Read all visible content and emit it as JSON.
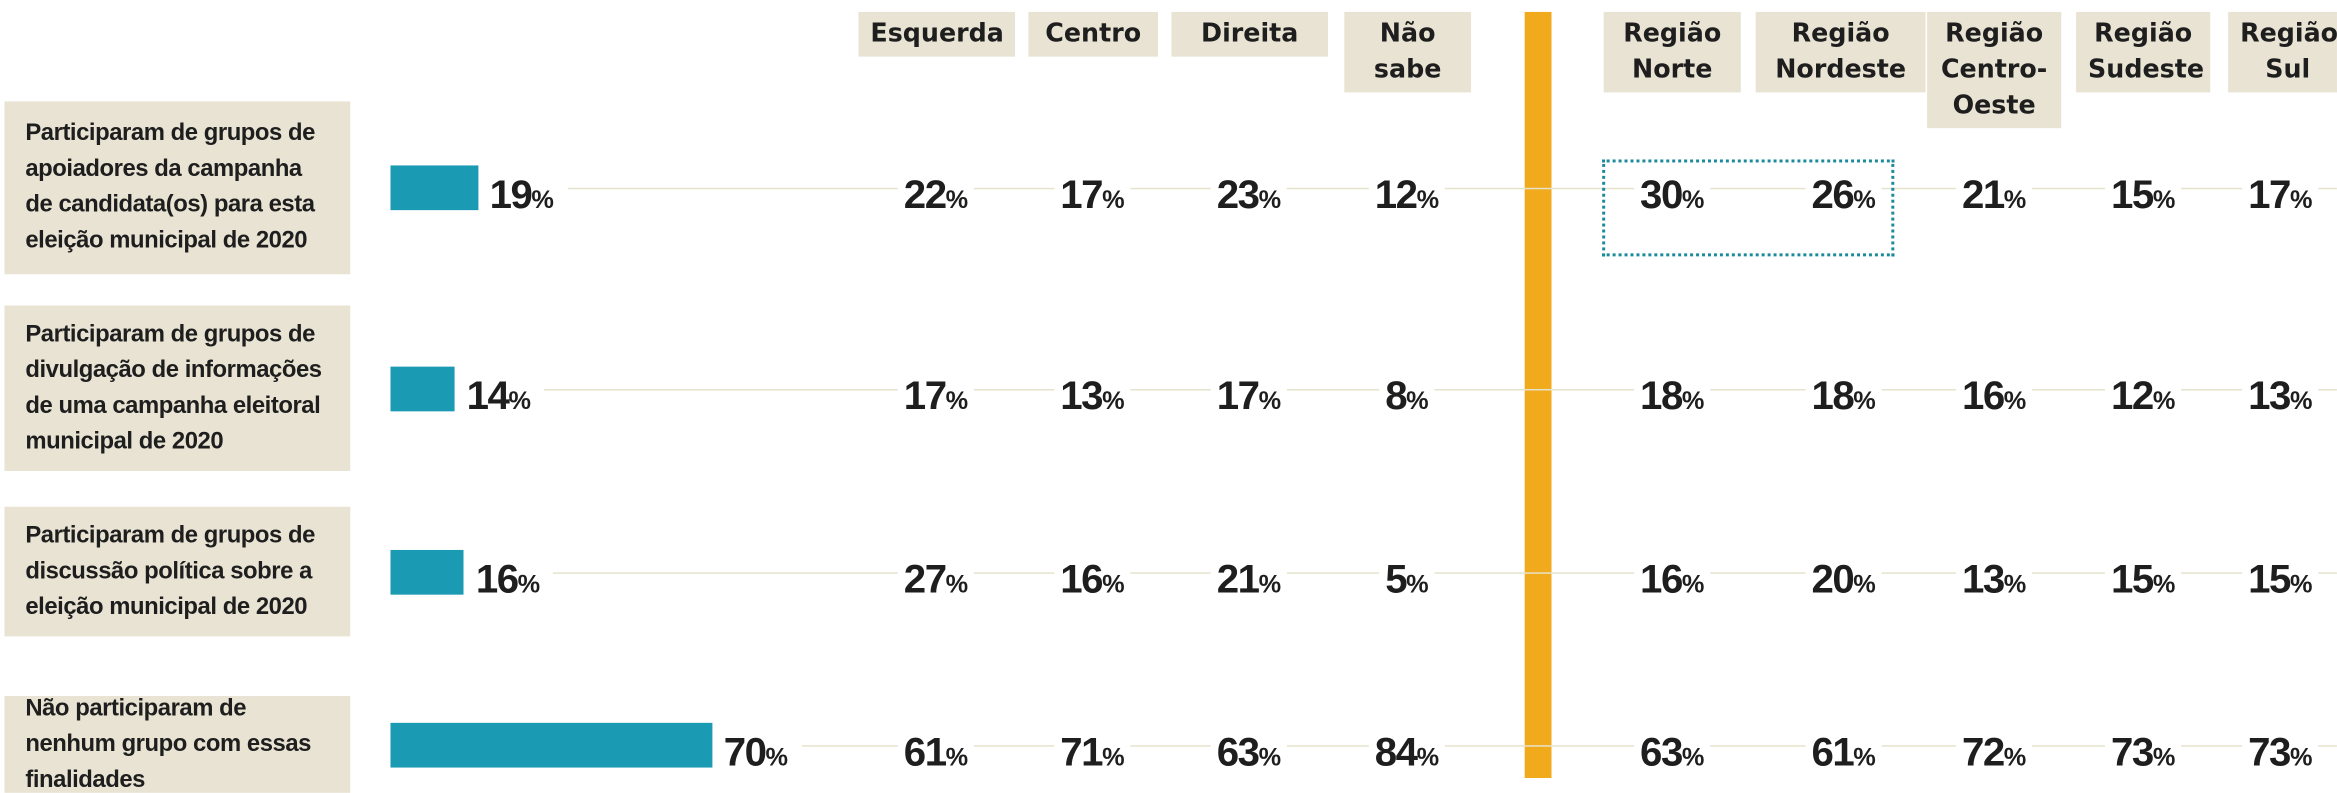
{
  "chart_data": {
    "type": "bar",
    "categories": [
      "Participaram de grupos de apoiadores da campanha de candidata(os) para esta eleição municipal de 2020",
      "Participaram de grupos de divulgação de informações de uma campanha eleitoral municipal de 2020",
      "Participaram de grupos de discussão política sobre a eleição municipal de 2020",
      "Não participaram de nenhum grupo com essas finalidades"
    ],
    "values": [
      19,
      14,
      16,
      70
    ],
    "value_labels": [
      "19%",
      "14%",
      "16%",
      "70%"
    ],
    "xlim": [
      0,
      100
    ],
    "color": "#1b9bb3",
    "columns": [
      {
        "name": "Esquerda",
        "values": [
          22,
          17,
          27,
          61
        ],
        "value_labels": [
          "22%",
          "17%",
          "27%",
          "61%"
        ]
      },
      {
        "name": "Centro",
        "values": [
          17,
          13,
          16,
          71
        ],
        "value_labels": [
          "17%",
          "13%",
          "16%",
          "71%"
        ]
      },
      {
        "name": "Direita",
        "values": [
          23,
          17,
          21,
          63
        ],
        "value_labels": [
          "23%",
          "17%",
          "21%",
          "63%"
        ]
      },
      {
        "name": "Não sabe",
        "values": [
          12,
          8,
          5,
          84
        ],
        "value_labels": [
          "12%",
          "8%",
          "5%",
          "84%"
        ]
      },
      {
        "name": "Região Norte",
        "values": [
          30,
          18,
          16,
          63
        ],
        "value_labels": [
          "30%",
          "18%",
          "16%",
          "63%"
        ]
      },
      {
        "name": "Região Nordeste",
        "values": [
          26,
          18,
          20,
          61
        ],
        "value_labels": [
          "26%",
          "18%",
          "20%",
          "61%"
        ]
      },
      {
        "name": "Região Centro-Oeste",
        "values": [
          21,
          16,
          13,
          72
        ],
        "value_labels": [
          "21%",
          "16%",
          "13%",
          "72%"
        ]
      },
      {
        "name": "Região Sudeste",
        "values": [
          15,
          12,
          15,
          73
        ],
        "value_labels": [
          "15%",
          "12%",
          "15%",
          "73%"
        ]
      },
      {
        "name": "Região Sul",
        "values": [
          17,
          13,
          15,
          73
        ],
        "value_labels": [
          "17%",
          "13%",
          "15%",
          "73%"
        ]
      }
    ]
  }
}
